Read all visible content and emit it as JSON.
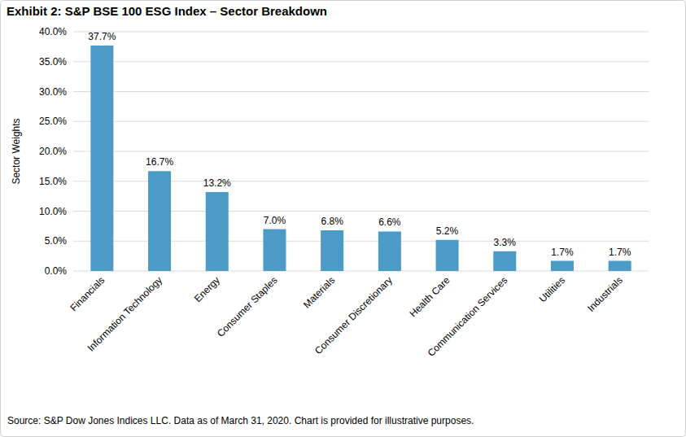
{
  "chart_data": {
    "type": "bar",
    "title": "Exhibit 2: S&P BSE 100 ESG Index – Sector Breakdown",
    "y_label": "Sector Weights",
    "categories": [
      "Financials",
      "Information Technology",
      "Energy",
      "Consumer Staples",
      "Materials",
      "Consumer Discretionary",
      "Health Care",
      "Communication Services",
      "Utilities",
      "Industrials"
    ],
    "values": [
      37.7,
      16.7,
      13.2,
      7.0,
      6.8,
      6.6,
      5.2,
      3.3,
      1.7,
      1.7
    ],
    "value_labels": [
      "37.7%",
      "16.7%",
      "13.2%",
      "7.0%",
      "6.8%",
      "6.6%",
      "5.2%",
      "3.3%",
      "1.7%",
      "1.7%"
    ],
    "color": "#4b9bc6",
    "ylim": [
      0,
      40
    ],
    "yticks": [
      {
        "value": 0,
        "label": "0.0%"
      },
      {
        "value": 5,
        "label": "5.0%"
      },
      {
        "value": 10,
        "label": "10.0%"
      },
      {
        "value": 15,
        "label": "15.0%"
      },
      {
        "value": 20,
        "label": "20.0%"
      },
      {
        "value": 25,
        "label": "25.0%"
      },
      {
        "value": 30,
        "label": "30.0%"
      },
      {
        "value": 35,
        "label": "35.0%"
      },
      {
        "value": 40,
        "label": "40.0%"
      }
    ],
    "grid": true,
    "data_labels": true,
    "annotations": [
      "Source: S&P Dow Jones Indices LLC. Data as of March 31, 2020. Chart is provided for illustrative purposes."
    ]
  }
}
